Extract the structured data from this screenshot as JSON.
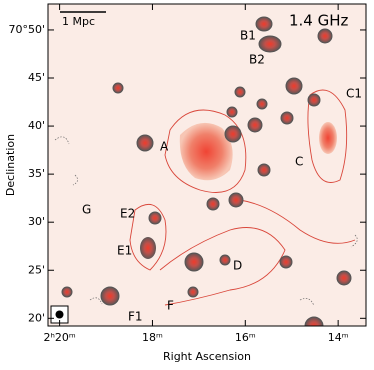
{
  "chart_data": {
    "type": "image",
    "title": "1.4 GHz",
    "scale_bar": "1 Mpc",
    "xlabel": "Right Ascension",
    "ylabel": "Declination",
    "xlim": [
      20.25,
      13.4
    ],
    "ylim": [
      19.2,
      52.7
    ],
    "xticks": [
      {
        "value": 20,
        "label": "2ʰ20ᵐ"
      },
      {
        "value": 18,
        "label": "18ᵐ"
      },
      {
        "value": 16,
        "label": "16ᵐ"
      },
      {
        "value": 14,
        "label": "14ᵐ"
      }
    ],
    "yticks": [
      {
        "value": 20,
        "label": "20'"
      },
      {
        "value": 25,
        "label": "25'"
      },
      {
        "value": 30,
        "label": "30'"
      },
      {
        "value": 35,
        "label": "35'"
      },
      {
        "value": 40,
        "label": "40'"
      },
      {
        "value": 45,
        "label": "45'"
      },
      {
        "value": 50,
        "label": "70°50'"
      }
    ],
    "annotations": [
      "A",
      "B1",
      "B2",
      "C",
      "C1",
      "D",
      "E1",
      "E2",
      "F",
      "F1",
      "G"
    ]
  }
}
